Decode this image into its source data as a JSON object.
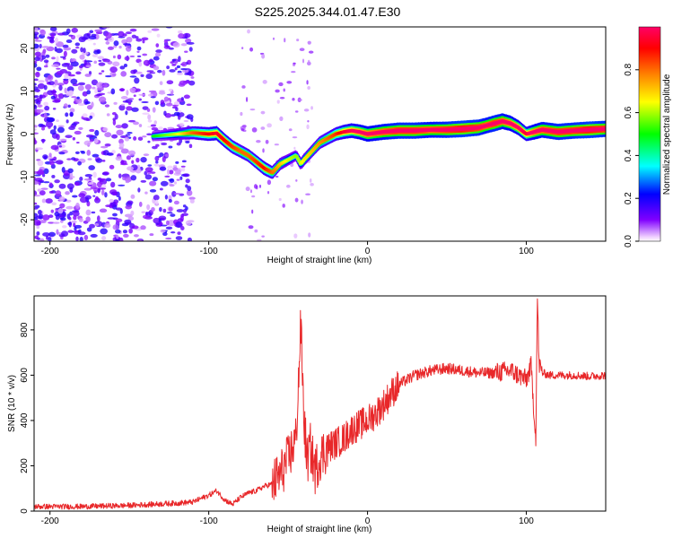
{
  "title": "S225.2025.344.01.47.E30",
  "colors": {
    "snr_line": "#e8282a",
    "spectrogram_ridge": "#d81010",
    "speckle": "#8a2be2",
    "colorbar_stops": [
      "#ff00ff",
      "#8000ff",
      "#0000ff",
      "#00ffff",
      "#00ff00",
      "#ffff00",
      "#ff8000",
      "#ff0000",
      "#ff0066"
    ]
  },
  "chart_data": [
    {
      "type": "heatmap",
      "name": "spectrogram",
      "xlabel": "Height of straight line (km)",
      "ylabel": "Frequency (Hz)",
      "xlim": [
        -210,
        150
      ],
      "ylim": [
        -25,
        25
      ],
      "xticks": [
        -200,
        -100,
        0,
        100
      ],
      "yticks": [
        -20,
        -10,
        0,
        10,
        20
      ],
      "colorbar": {
        "label": "Normalized spectral amplitude",
        "range": [
          0,
          1
        ],
        "ticks": [
          "0.0",
          "0.2",
          "0.4",
          "0.6",
          "0.8"
        ]
      },
      "ridge": {
        "x": [
          -135,
          -120,
          -110,
          -100,
          -95,
          -90,
          -85,
          -80,
          -75,
          -70,
          -65,
          -60,
          -55,
          -50,
          -45,
          -42,
          -40,
          -35,
          -30,
          -25,
          -20,
          -15,
          -10,
          -5,
          0,
          10,
          20,
          30,
          40,
          50,
          60,
          70,
          75,
          80,
          85,
          90,
          95,
          100,
          105,
          110,
          120,
          130,
          140,
          150
        ],
        "y": [
          -0.5,
          0,
          0.3,
          0,
          0.2,
          -1.5,
          -3,
          -4,
          -5,
          -6.5,
          -8,
          -9,
          -7,
          -6,
          -5,
          -7,
          -6,
          -4,
          -2,
          -1,
          0,
          0.5,
          0.8,
          0.5,
          0,
          0.5,
          0.8,
          0.8,
          1,
          1,
          1.2,
          1.5,
          2,
          2.5,
          3,
          2.5,
          1.5,
          0,
          0.5,
          1,
          0.5,
          0.8,
          1,
          1.2
        ],
        "amp": [
          0.1,
          0.25,
          0.45,
          0.55,
          0.6,
          0.55,
          0.5,
          0.45,
          0.45,
          0.5,
          0.55,
          0.45,
          0.35,
          0.25,
          0.2,
          0.25,
          0.3,
          0.35,
          0.4,
          0.45,
          0.5,
          0.6,
          0.65,
          0.7,
          0.75,
          0.8,
          0.85,
          0.85,
          0.8,
          0.85,
          0.9,
          0.85,
          0.8,
          0.85,
          0.8,
          0.75,
          0.7,
          0.6,
          0.75,
          0.8,
          0.85,
          0.85,
          0.9,
          0.85
        ]
      }
    },
    {
      "type": "line",
      "name": "snr",
      "xlabel": "Height of straight line (km)",
      "ylabel": "SNR (10 * v/v)",
      "xlim": [
        -210,
        150
      ],
      "ylim": [
        0,
        950
      ],
      "xticks": [
        -200,
        -100,
        0,
        100
      ],
      "yticks": [
        0,
        200,
        400,
        600,
        800
      ],
      "series": [
        {
          "name": "SNR",
          "x": [
            -210,
            -180,
            -150,
            -120,
            -110,
            -100,
            -95,
            -90,
            -85,
            -80,
            -75,
            -70,
            -65,
            -60,
            -55,
            -50,
            -45,
            -42,
            -40,
            -38,
            -36,
            -33,
            -30,
            -25,
            -20,
            -15,
            -10,
            -5,
            0,
            5,
            10,
            15,
            20,
            25,
            30,
            40,
            50,
            60,
            70,
            80,
            90,
            95,
            100,
            103,
            105,
            106,
            107,
            108,
            110,
            115,
            120,
            130,
            140,
            150
          ],
          "y": [
            20,
            20,
            25,
            35,
            40,
            70,
            90,
            50,
            30,
            60,
            80,
            90,
            110,
            120,
            160,
            230,
            320,
            820,
            400,
            220,
            280,
            180,
            240,
            280,
            300,
            320,
            360,
            380,
            400,
            430,
            470,
            520,
            560,
            580,
            600,
            620,
            630,
            620,
            610,
            610,
            620,
            600,
            580,
            640,
            420,
            330,
            950,
            650,
            610,
            600,
            600,
            600,
            595,
            600
          ]
        }
      ]
    }
  ]
}
